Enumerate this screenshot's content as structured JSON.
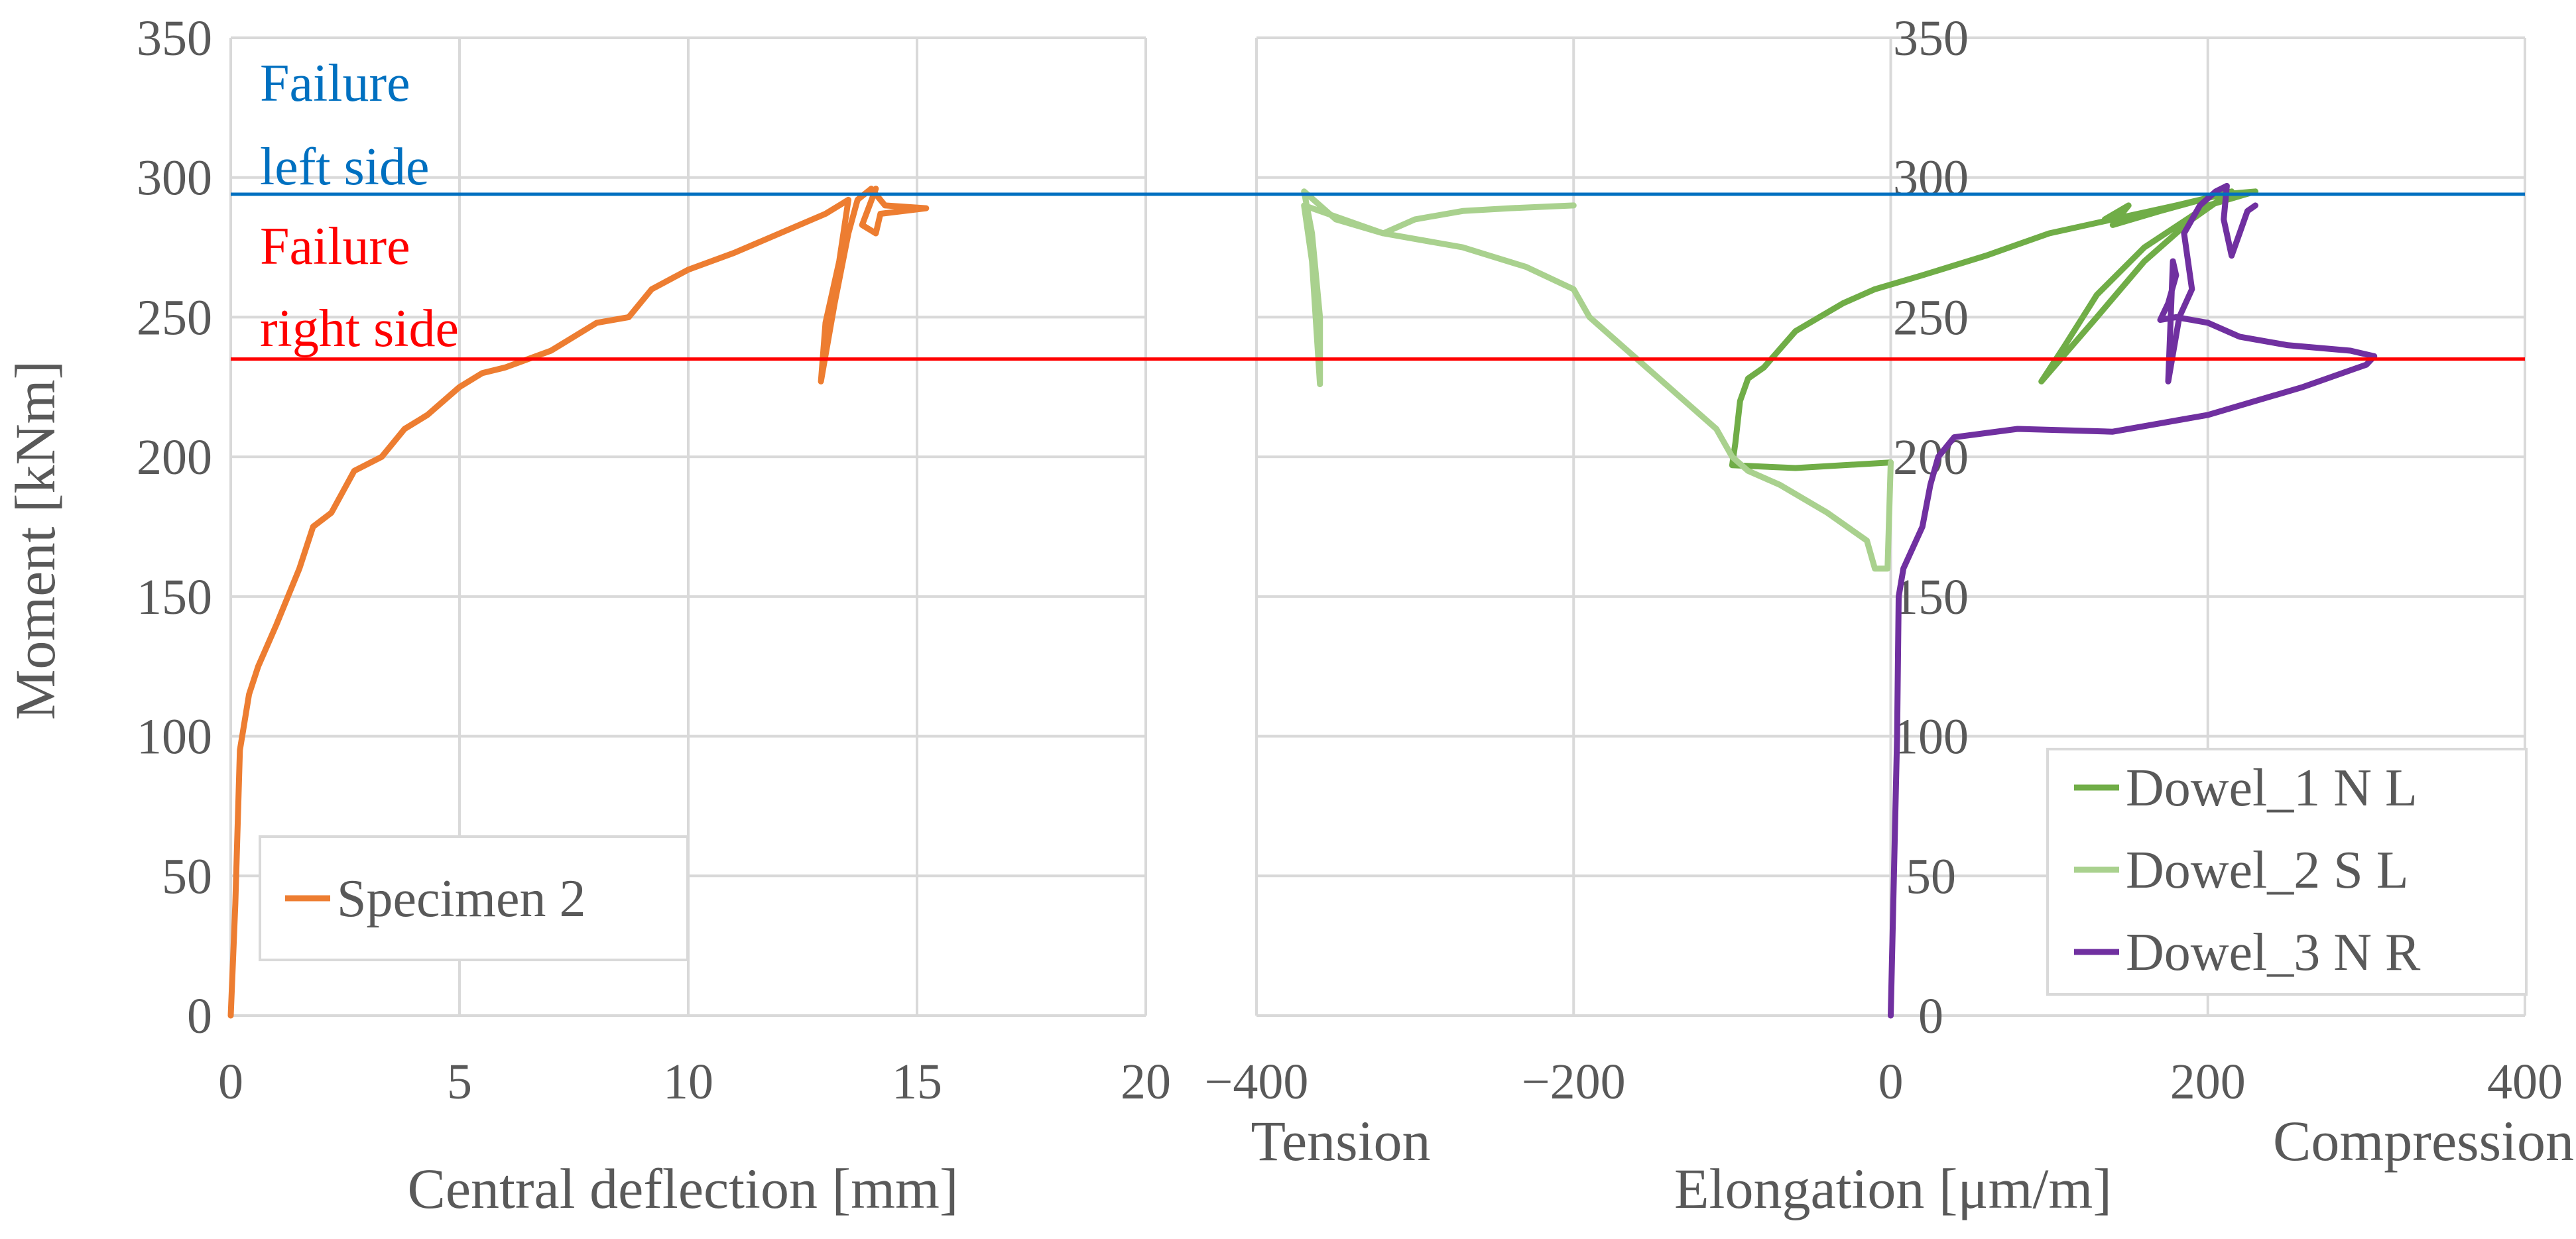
{
  "chart_data": [
    {
      "type": "line",
      "panel": "left",
      "xlabel": "Central deflection [mm]",
      "ylabel": "Moment [kNm]",
      "xlim": [
        0,
        20
      ],
      "ylim": [
        0,
        350
      ],
      "xticks": [
        0,
        5,
        10,
        15,
        20
      ],
      "yticks": [
        0,
        50,
        100,
        150,
        200,
        250,
        300,
        350
      ],
      "grid": true,
      "legend": {
        "position": "bottom-left",
        "entries": [
          "Specimen 2"
        ]
      },
      "series": [
        {
          "name": "Specimen 2",
          "color": "#ED7D31",
          "points": [
            [
              0,
              0
            ],
            [
              0.1,
              40
            ],
            [
              0.2,
              95
            ],
            [
              0.4,
              115
            ],
            [
              0.6,
              125
            ],
            [
              1.0,
              140
            ],
            [
              1.5,
              160
            ],
            [
              1.8,
              175
            ],
            [
              2.2,
              180
            ],
            [
              2.7,
              195
            ],
            [
              3.3,
              200
            ],
            [
              3.8,
              210
            ],
            [
              4.3,
              215
            ],
            [
              5,
              225
            ],
            [
              5.5,
              230
            ],
            [
              6,
              232
            ],
            [
              7,
              238
            ],
            [
              8,
              248
            ],
            [
              8.7,
              250
            ],
            [
              9.2,
              260
            ],
            [
              10,
              267
            ],
            [
              11,
              273
            ],
            [
              12,
              280
            ],
            [
              13,
              287
            ],
            [
              13.5,
              292
            ],
            [
              13.3,
              270
            ],
            [
              13,
              248
            ],
            [
              12.9,
              227
            ],
            [
              13.2,
              255
            ],
            [
              13.5,
              280
            ],
            [
              13.7,
              292
            ],
            [
              14,
              296
            ],
            [
              14.3,
              290
            ],
            [
              15.2,
              289
            ],
            [
              14.2,
              287
            ],
            [
              14.1,
              280
            ],
            [
              13.8,
              283
            ],
            [
              14.1,
              296
            ]
          ]
        }
      ],
      "annotations": [
        {
          "name": "failure-left",
          "lines": [
            "Failure",
            "left side"
          ],
          "y": 294,
          "color": "#0070C0"
        },
        {
          "name": "failure-right",
          "lines": [
            "Failure",
            "right side"
          ],
          "y": 235,
          "color": "#FF0000"
        }
      ]
    },
    {
      "type": "line",
      "panel": "right",
      "xlabel": "Elongation [μm/m]",
      "xsub_left": "Tension",
      "xsub_right": "Compression",
      "xlim": [
        -400,
        400
      ],
      "ylim": [
        0,
        350
      ],
      "xticks": [
        -400,
        -200,
        0,
        200,
        400
      ],
      "yticks": [
        0,
        50,
        100,
        150,
        200,
        250,
        300,
        350
      ],
      "grid": true,
      "legend": {
        "position": "bottom-right",
        "entries": [
          "Dowel_1 N L",
          "Dowel_2 S L",
          "Dowel_3  N R"
        ]
      },
      "series": [
        {
          "name": "Dowel_1 N L",
          "color": "#70AD47",
          "points": [
            [
              0,
              198
            ],
            [
              -60,
              196
            ],
            [
              -100,
              197
            ],
            [
              -98,
              205
            ],
            [
              -95,
              220
            ],
            [
              -90,
              228
            ],
            [
              -80,
              232
            ],
            [
              -60,
              245
            ],
            [
              -30,
              255
            ],
            [
              -10,
              260
            ],
            [
              20,
              265
            ],
            [
              60,
              272
            ],
            [
              100,
              280
            ],
            [
              140,
              285
            ],
            [
              180,
              290
            ],
            [
              210,
              294
            ],
            [
              230,
              295
            ],
            [
              200,
              290
            ],
            [
              160,
              275
            ],
            [
              130,
              258
            ],
            [
              110,
              240
            ],
            [
              95,
              227
            ],
            [
              130,
              250
            ],
            [
              160,
              270
            ],
            [
              190,
              285
            ],
            [
              215,
              295
            ],
            [
              170,
              288
            ],
            [
              140,
              283
            ],
            [
              150,
              290
            ],
            [
              135,
              285
            ]
          ]
        },
        {
          "name": "Dowel_2 S L",
          "color": "#A9D18E",
          "points": [
            [
              0,
              198
            ],
            [
              -2,
              160
            ],
            [
              -10,
              160
            ],
            [
              -15,
              170
            ],
            [
              -40,
              180
            ],
            [
              -70,
              190
            ],
            [
              -90,
              195
            ],
            [
              -100,
              200
            ],
            [
              -110,
              210
            ],
            [
              -140,
              225
            ],
            [
              -170,
              240
            ],
            [
              -190,
              250
            ],
            [
              -195,
              255
            ],
            [
              -200,
              260
            ],
            [
              -230,
              268
            ],
            [
              -270,
              275
            ],
            [
              -320,
              280
            ],
            [
              -350,
              285
            ],
            [
              -370,
              295
            ],
            [
              -365,
              280
            ],
            [
              -360,
              250
            ],
            [
              -360,
              226
            ],
            [
              -365,
              270
            ],
            [
              -370,
              290
            ],
            [
              -330,
              282
            ],
            [
              -320,
              280
            ],
            [
              -300,
              285
            ],
            [
              -270,
              288
            ],
            [
              -240,
              289
            ],
            [
              -200,
              290
            ]
          ]
        },
        {
          "name": "Dowel_3  N R",
          "color": "#7030A0",
          "points": [
            [
              0,
              0
            ],
            [
              2,
              50
            ],
            [
              4,
              100
            ],
            [
              5,
              150
            ],
            [
              8,
              160
            ],
            [
              20,
              175
            ],
            [
              25,
              190
            ],
            [
              30,
              200
            ],
            [
              40,
              207
            ],
            [
              80,
              210
            ],
            [
              140,
              209
            ],
            [
              200,
              215
            ],
            [
              260,
              225
            ],
            [
              300,
              233
            ],
            [
              305,
              236
            ],
            [
              290,
              238
            ],
            [
              250,
              240
            ],
            [
              220,
              243
            ],
            [
              200,
              248
            ],
            [
              180,
              250
            ],
            [
              170,
              249
            ],
            [
              175,
              255
            ],
            [
              180,
              265
            ],
            [
              178,
              270
            ],
            [
              175,
              227
            ],
            [
              182,
              250
            ],
            [
              190,
              260
            ],
            [
              185,
              280
            ],
            [
              195,
              290
            ],
            [
              205,
              295
            ],
            [
              212,
              297
            ],
            [
              210,
              285
            ],
            [
              215,
              272
            ],
            [
              220,
              280
            ],
            [
              225,
              288
            ],
            [
              230,
              290
            ]
          ]
        }
      ]
    }
  ]
}
